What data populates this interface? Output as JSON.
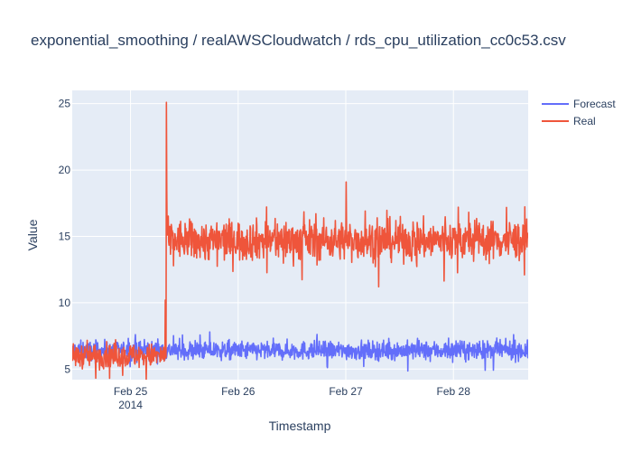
{
  "chart_data": {
    "type": "line",
    "title": "exponential_smoothing / realAWSCloudwatch / rds_cpu_utilization_cc0c53.csv",
    "xlabel": "Timestamp",
    "ylabel": "Value",
    "x_range": [
      "2014-02-24 11:00",
      "2014-02-28 16:40"
    ],
    "ylim": [
      4.2,
      26.0
    ],
    "x_ticks": [
      {
        "value": "2014-02-25",
        "label": "Feb 25",
        "sublabel": "2014"
      },
      {
        "value": "2014-02-26",
        "label": "Feb 26",
        "sublabel": ""
      },
      {
        "value": "2014-02-27",
        "label": "Feb 27",
        "sublabel": ""
      },
      {
        "value": "2014-02-28",
        "label": "Feb 28",
        "sublabel": ""
      }
    ],
    "y_ticks": [
      5,
      10,
      15,
      20,
      25
    ],
    "grid": true,
    "legend_position": "top-right",
    "sampling_minutes": 5,
    "series": [
      {
        "name": "Forecast",
        "color": "#636efa",
        "level_profile": [
          {
            "from": "2014-02-24 11:00",
            "to": "2014-02-28 16:40",
            "mean": 6.4,
            "noise": 0.35
          }
        ],
        "spikes": []
      },
      {
        "name": "Real",
        "color": "#ef553b",
        "level_profile": [
          {
            "from": "2014-02-24 11:00",
            "to": "2014-02-25 07:55",
            "mean": 6.0,
            "noise": 0.45
          },
          {
            "from": "2014-02-25 08:00",
            "to": "2014-02-28 16:40",
            "mean": 14.7,
            "noise": 0.75
          }
        ],
        "spikes": [
          {
            "t": "2014-02-25 07:45",
            "value": 10.2
          },
          {
            "t": "2014-02-25 08:00",
            "value": 25.1
          },
          {
            "t": "2014-02-25 08:05",
            "value": 18.4
          },
          {
            "t": "2014-02-25 08:15",
            "value": 16.4
          },
          {
            "t": "2014-02-27 00:05",
            "value": 19.1
          },
          {
            "t": "2014-02-27 07:20",
            "value": 11.2
          },
          {
            "t": "2014-02-28 01:05",
            "value": 17.2
          },
          {
            "t": "2014-02-28 15:50",
            "value": 12.1
          }
        ]
      }
    ]
  }
}
